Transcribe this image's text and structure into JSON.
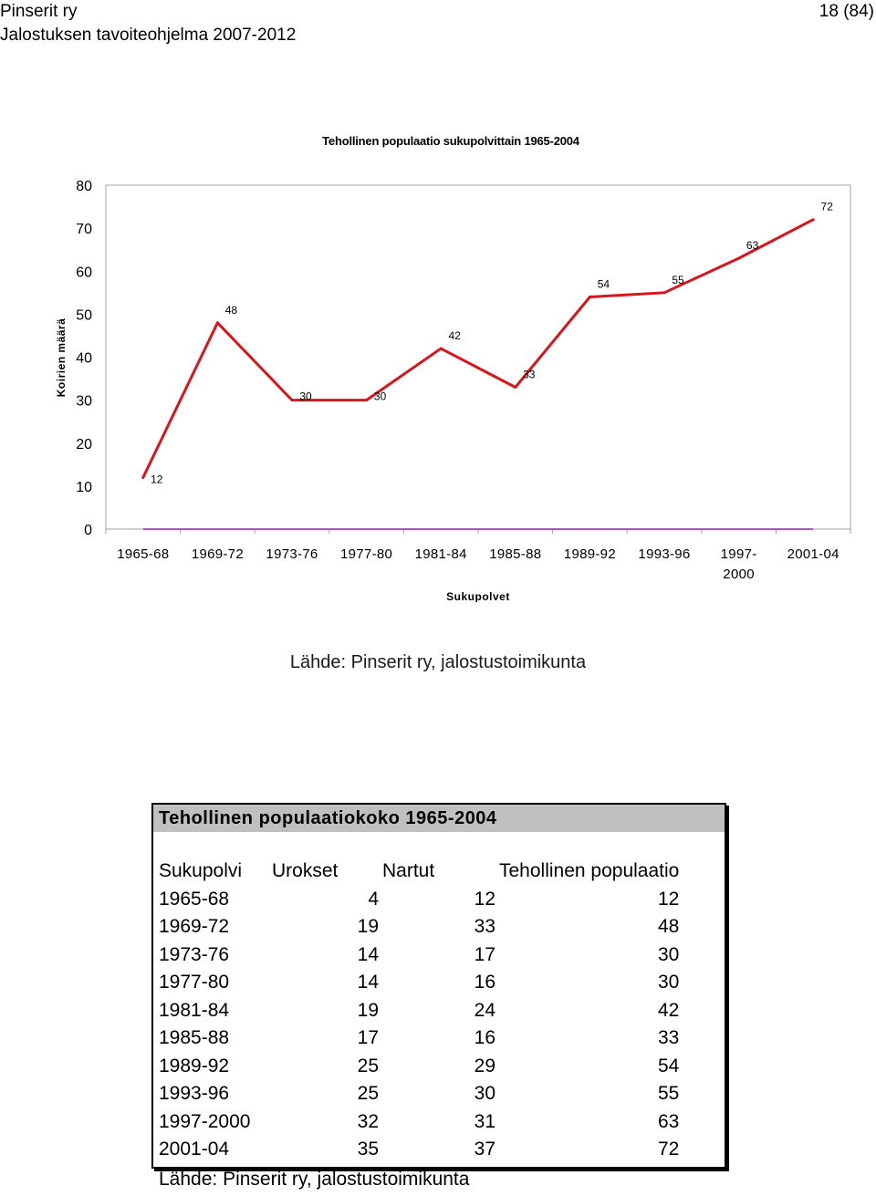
{
  "header": {
    "org": "Pinserit ry",
    "doc_title": "Jalostuksen tavoiteohjelma 2007-2012",
    "page": "18 (84)"
  },
  "chart_data": {
    "type": "line",
    "title": "Tehollinen populaatio sukupolvittain 1965-2004",
    "xlabel": "Sukupolvet",
    "ylabel": "Koirien määrä",
    "categories": [
      "1965-68",
      "1969-72",
      "1973-76",
      "1977-80",
      "1981-84",
      "1985-88",
      "1989-92",
      "1993-96",
      "1997-2000",
      "2001-04"
    ],
    "category_labels": [
      [
        "1965-68"
      ],
      [
        "1969-72"
      ],
      [
        "1973-76"
      ],
      [
        "1977-80"
      ],
      [
        "1981-84"
      ],
      [
        "1985-88"
      ],
      [
        "1989-92"
      ],
      [
        "1993-96"
      ],
      [
        "1997-",
        "2000"
      ],
      [
        "2001-04"
      ]
    ],
    "series": [
      {
        "values": [
          12,
          48,
          30,
          30,
          42,
          33,
          54,
          55,
          63,
          72
        ],
        "color": "#d9141b"
      },
      {
        "values": [
          0,
          0,
          0,
          0,
          0,
          0,
          0,
          0,
          0,
          0
        ],
        "color": "#b84fd1"
      }
    ],
    "yticks": [
      0,
      10,
      20,
      30,
      40,
      50,
      60,
      70,
      80
    ],
    "ylim": [
      0,
      80
    ],
    "grid": false,
    "legend": "none"
  },
  "source_chart": "Lähde: Pinserit ry, jalostustoimikunta",
  "table": {
    "title": "Tehollinen populaatiokoko 1965-2004",
    "columns": [
      "Sukupolvi",
      "Urokset",
      "Nartut",
      "Tehollinen populaatio"
    ],
    "rows": [
      [
        "1965-68",
        "4",
        "12",
        "12"
      ],
      [
        "1969-72",
        "19",
        "33",
        "48"
      ],
      [
        "1973-76",
        "14",
        "17",
        "30"
      ],
      [
        "1977-80",
        "14",
        "16",
        "30"
      ],
      [
        "1981-84",
        "19",
        "24",
        "42"
      ],
      [
        "1985-88",
        "17",
        "16",
        "33"
      ],
      [
        "1989-92",
        "25",
        "29",
        "54"
      ],
      [
        "1993-96",
        "25",
        "30",
        "55"
      ],
      [
        "1997-2000",
        "32",
        "31",
        "63"
      ],
      [
        "2001-04",
        "35",
        "37",
        "72"
      ]
    ],
    "source": "Lähde: Pinserit ry, jalostustoimikunta"
  }
}
